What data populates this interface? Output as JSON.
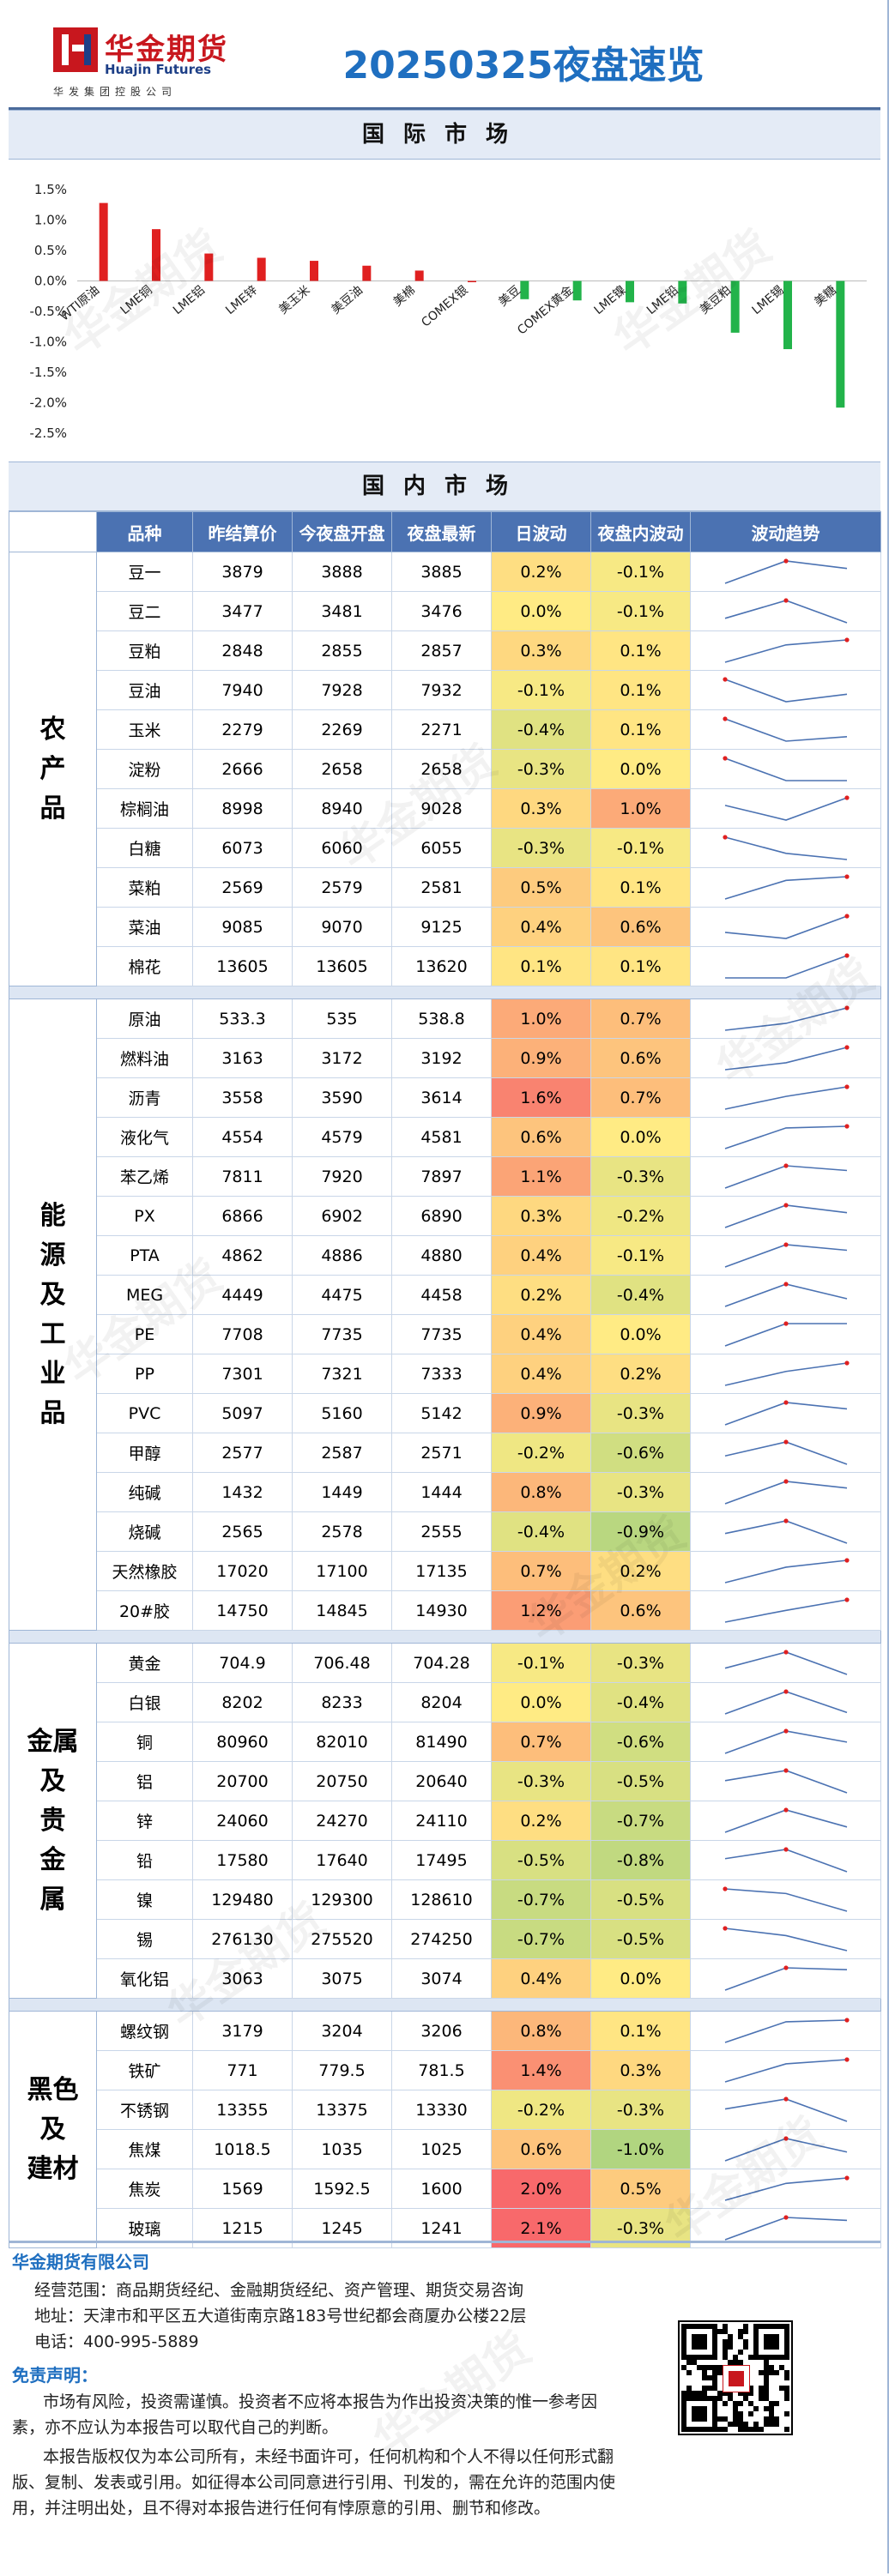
{
  "header": {
    "logo_cn": "华金期货",
    "logo_en": "Huajin Futures",
    "logo_sub": "华发集团控股公司",
    "title": "20250325夜盘速览",
    "watermark": "华金期货"
  },
  "sections": {
    "international": "国际市场",
    "domestic": "国内市场"
  },
  "chart_data": {
    "type": "bar",
    "categories": [
      "WTI原油",
      "LME铜",
      "LME铝",
      "LME锌",
      "美玉米",
      "美豆油",
      "美棉",
      "COMEX银",
      "美豆",
      "COMEX黄金",
      "LME镍",
      "LME铅",
      "美豆粕",
      "LME锡",
      "美糖"
    ],
    "values": [
      1.28,
      0.85,
      0.45,
      0.38,
      0.33,
      0.25,
      0.17,
      0.0,
      -0.3,
      -0.32,
      -0.35,
      -0.37,
      -0.85,
      -1.12,
      -2.08
    ],
    "ylim": [
      -2.5,
      1.5
    ],
    "yticks": [
      "1.5%",
      "1.0%",
      "0.5%",
      "0.0%",
      "-0.5%",
      "-1.0%",
      "-1.5%",
      "-2.0%",
      "-2.5%"
    ],
    "colors": {
      "up": "#e02020",
      "down": "#22b34a"
    },
    "grid": false
  },
  "table": {
    "headers": [
      "品种",
      "昨结算价",
      "今夜盘开盘",
      "夜盘最新",
      "日波动",
      "夜盘内波动",
      "波动趋势"
    ],
    "groups": [
      {
        "name": "农产品",
        "rows": [
          {
            "name": "豆一",
            "prev": "3879",
            "open": "3888",
            "last": "3885",
            "day": "0.2%",
            "night": "-0.1%",
            "trend": [
              3879,
              3888,
              3885
            ],
            "day_v": 0.2,
            "night_v": -0.1
          },
          {
            "name": "豆二",
            "prev": "3477",
            "open": "3481",
            "last": "3476",
            "day": "0.0%",
            "night": "-0.1%",
            "trend": [
              3477,
              3481,
              3476
            ],
            "day_v": 0.0,
            "night_v": -0.1
          },
          {
            "name": "豆粕",
            "prev": "2848",
            "open": "2855",
            "last": "2857",
            "day": "0.3%",
            "night": "0.1%",
            "trend": [
              2848,
              2855,
              2857
            ],
            "day_v": 0.3,
            "night_v": 0.1
          },
          {
            "name": "豆油",
            "prev": "7940",
            "open": "7928",
            "last": "7932",
            "day": "-0.1%",
            "night": "0.1%",
            "trend": [
              7940,
              7928,
              7932
            ],
            "day_v": -0.1,
            "night_v": 0.1
          },
          {
            "name": "玉米",
            "prev": "2279",
            "open": "2269",
            "last": "2271",
            "day": "-0.4%",
            "night": "0.1%",
            "trend": [
              2279,
              2269,
              2271
            ],
            "day_v": -0.4,
            "night_v": 0.1
          },
          {
            "name": "淀粉",
            "prev": "2666",
            "open": "2658",
            "last": "2658",
            "day": "-0.3%",
            "night": "0.0%",
            "trend": [
              2666,
              2658,
              2658
            ],
            "day_v": -0.3,
            "night_v": 0.0
          },
          {
            "name": "棕榈油",
            "prev": "8998",
            "open": "8940",
            "last": "9028",
            "day": "0.3%",
            "night": "1.0%",
            "trend": [
              8998,
              8940,
              9028
            ],
            "day_v": 0.3,
            "night_v": 1.0
          },
          {
            "name": "白糖",
            "prev": "6073",
            "open": "6060",
            "last": "6055",
            "day": "-0.3%",
            "night": "-0.1%",
            "trend": [
              6073,
              6060,
              6055
            ],
            "day_v": -0.3,
            "night_v": -0.1
          },
          {
            "name": "菜粕",
            "prev": "2569",
            "open": "2579",
            "last": "2581",
            "day": "0.5%",
            "night": "0.1%",
            "trend": [
              2569,
              2579,
              2581
            ],
            "day_v": 0.5,
            "night_v": 0.1
          },
          {
            "name": "菜油",
            "prev": "9085",
            "open": "9070",
            "last": "9125",
            "day": "0.4%",
            "night": "0.6%",
            "trend": [
              9085,
              9070,
              9125
            ],
            "day_v": 0.4,
            "night_v": 0.6
          },
          {
            "name": "棉花",
            "prev": "13605",
            "open": "13605",
            "last": "13620",
            "day": "0.1%",
            "night": "0.1%",
            "trend": [
              13605,
              13605,
              13620
            ],
            "day_v": 0.1,
            "night_v": 0.1
          }
        ]
      },
      {
        "name": "能源及工业品",
        "rows": [
          {
            "name": "原油",
            "prev": "533.3",
            "open": "535",
            "last": "538.8",
            "day": "1.0%",
            "night": "0.7%",
            "trend": [
              533.3,
              535,
              538.8
            ],
            "day_v": 1.0,
            "night_v": 0.7
          },
          {
            "name": "燃料油",
            "prev": "3163",
            "open": "3172",
            "last": "3192",
            "day": "0.9%",
            "night": "0.6%",
            "trend": [
              3163,
              3172,
              3192
            ],
            "day_v": 0.9,
            "night_v": 0.6
          },
          {
            "name": "沥青",
            "prev": "3558",
            "open": "3590",
            "last": "3614",
            "day": "1.6%",
            "night": "0.7%",
            "trend": [
              3558,
              3590,
              3614
            ],
            "day_v": 1.6,
            "night_v": 0.7
          },
          {
            "name": "液化气",
            "prev": "4554",
            "open": "4579",
            "last": "4581",
            "day": "0.6%",
            "night": "0.0%",
            "trend": [
              4554,
              4579,
              4581
            ],
            "day_v": 0.6,
            "night_v": 0.0
          },
          {
            "name": "苯乙烯",
            "prev": "7811",
            "open": "7920",
            "last": "7897",
            "day": "1.1%",
            "night": "-0.3%",
            "trend": [
              7811,
              7920,
              7897
            ],
            "day_v": 1.1,
            "night_v": -0.3
          },
          {
            "name": "PX",
            "prev": "6866",
            "open": "6902",
            "last": "6890",
            "day": "0.3%",
            "night": "-0.2%",
            "trend": [
              6866,
              6902,
              6890
            ],
            "day_v": 0.3,
            "night_v": -0.2
          },
          {
            "name": "PTA",
            "prev": "4862",
            "open": "4886",
            "last": "4880",
            "day": "0.4%",
            "night": "-0.1%",
            "trend": [
              4862,
              4886,
              4880
            ],
            "day_v": 0.4,
            "night_v": -0.1
          },
          {
            "name": "MEG",
            "prev": "4449",
            "open": "4475",
            "last": "4458",
            "day": "0.2%",
            "night": "-0.4%",
            "trend": [
              4449,
              4475,
              4458
            ],
            "day_v": 0.2,
            "night_v": -0.4
          },
          {
            "name": "PE",
            "prev": "7708",
            "open": "7735",
            "last": "7735",
            "day": "0.4%",
            "night": "0.0%",
            "trend": [
              7708,
              7735,
              7735
            ],
            "day_v": 0.4,
            "night_v": 0.0
          },
          {
            "name": "PP",
            "prev": "7301",
            "open": "7321",
            "last": "7333",
            "day": "0.4%",
            "night": "0.2%",
            "trend": [
              7301,
              7321,
              7333
            ],
            "day_v": 0.4,
            "night_v": 0.2
          },
          {
            "name": "PVC",
            "prev": "5097",
            "open": "5160",
            "last": "5142",
            "day": "0.9%",
            "night": "-0.3%",
            "trend": [
              5097,
              5160,
              5142
            ],
            "day_v": 0.9,
            "night_v": -0.3
          },
          {
            "name": "甲醇",
            "prev": "2577",
            "open": "2587",
            "last": "2571",
            "day": "-0.2%",
            "night": "-0.6%",
            "trend": [
              2577,
              2587,
              2571
            ],
            "day_v": -0.2,
            "night_v": -0.6
          },
          {
            "name": "纯碱",
            "prev": "1432",
            "open": "1449",
            "last": "1444",
            "day": "0.8%",
            "night": "-0.3%",
            "trend": [
              1432,
              1449,
              1444
            ],
            "day_v": 0.8,
            "night_v": -0.3
          },
          {
            "name": "烧碱",
            "prev": "2565",
            "open": "2578",
            "last": "2555",
            "day": "-0.4%",
            "night": "-0.9%",
            "trend": [
              2565,
              2578,
              2555
            ],
            "day_v": -0.4,
            "night_v": -0.9
          },
          {
            "name": "天然橡胶",
            "prev": "17020",
            "open": "17100",
            "last": "17135",
            "day": "0.7%",
            "night": "0.2%",
            "trend": [
              17020,
              17100,
              17135
            ],
            "day_v": 0.7,
            "night_v": 0.2
          },
          {
            "name": "20#胶",
            "prev": "14750",
            "open": "14845",
            "last": "14930",
            "day": "1.2%",
            "night": "0.6%",
            "trend": [
              14750,
              14845,
              14930
            ],
            "day_v": 1.2,
            "night_v": 0.6
          }
        ]
      },
      {
        "name": "金属及贵金属",
        "rows": [
          {
            "name": "黄金",
            "prev": "704.9",
            "open": "706.48",
            "last": "704.28",
            "day": "-0.1%",
            "night": "-0.3%",
            "trend": [
              704.9,
              706.48,
              704.28
            ],
            "day_v": -0.1,
            "night_v": -0.3
          },
          {
            "name": "白银",
            "prev": "8202",
            "open": "8233",
            "last": "8204",
            "day": "0.0%",
            "night": "-0.4%",
            "trend": [
              8202,
              8233,
              8204
            ],
            "day_v": 0.0,
            "night_v": -0.4
          },
          {
            "name": "铜",
            "prev": "80960",
            "open": "82010",
            "last": "81490",
            "day": "0.7%",
            "night": "-0.6%",
            "trend": [
              80960,
              82010,
              81490
            ],
            "day_v": 0.7,
            "night_v": -0.6
          },
          {
            "name": "铝",
            "prev": "20700",
            "open": "20750",
            "last": "20640",
            "day": "-0.3%",
            "night": "-0.5%",
            "trend": [
              20700,
              20750,
              20640
            ],
            "day_v": -0.3,
            "night_v": -0.5
          },
          {
            "name": "锌",
            "prev": "24060",
            "open": "24270",
            "last": "24110",
            "day": "0.2%",
            "night": "-0.7%",
            "trend": [
              24060,
              24270,
              24110
            ],
            "day_v": 0.2,
            "night_v": -0.7
          },
          {
            "name": "铅",
            "prev": "17580",
            "open": "17640",
            "last": "17495",
            "day": "-0.5%",
            "night": "-0.8%",
            "trend": [
              17580,
              17640,
              17495
            ],
            "day_v": -0.5,
            "night_v": -0.8
          },
          {
            "name": "镍",
            "prev": "129480",
            "open": "129300",
            "last": "128610",
            "day": "-0.7%",
            "night": "-0.5%",
            "trend": [
              129480,
              129300,
              128610
            ],
            "day_v": -0.7,
            "night_v": -0.5
          },
          {
            "name": "锡",
            "prev": "276130",
            "open": "275520",
            "last": "274250",
            "day": "-0.7%",
            "night": "-0.5%",
            "trend": [
              276130,
              275520,
              274250
            ],
            "day_v": -0.7,
            "night_v": -0.5
          },
          {
            "name": "氧化铝",
            "prev": "3063",
            "open": "3075",
            "last": "3074",
            "day": "0.4%",
            "night": "0.0%",
            "trend": [
              3063,
              3075,
              3074
            ],
            "day_v": 0.4,
            "night_v": 0.0
          }
        ]
      },
      {
        "name": "黑色及建材",
        "rows": [
          {
            "name": "螺纹钢",
            "prev": "3179",
            "open": "3204",
            "last": "3206",
            "day": "0.8%",
            "night": "0.1%",
            "trend": [
              3179,
              3204,
              3206
            ],
            "day_v": 0.8,
            "night_v": 0.1
          },
          {
            "name": "铁矿",
            "prev": "771",
            "open": "779.5",
            "last": "781.5",
            "day": "1.4%",
            "night": "0.3%",
            "trend": [
              771,
              779.5,
              781.5
            ],
            "day_v": 1.4,
            "night_v": 0.3
          },
          {
            "name": "不锈钢",
            "prev": "13355",
            "open": "13375",
            "last": "13330",
            "day": "-0.2%",
            "night": "-0.3%",
            "trend": [
              13355,
              13375,
              13330
            ],
            "day_v": -0.2,
            "night_v": -0.3
          },
          {
            "name": "焦煤",
            "prev": "1018.5",
            "open": "1035",
            "last": "1025",
            "day": "0.6%",
            "night": "-1.0%",
            "trend": [
              1018.5,
              1035,
              1025
            ],
            "day_v": 0.6,
            "night_v": -1.0
          },
          {
            "name": "焦炭",
            "prev": "1569",
            "open": "1592.5",
            "last": "1600",
            "day": "2.0%",
            "night": "0.5%",
            "trend": [
              1569,
              1592.5,
              1600
            ],
            "day_v": 2.0,
            "night_v": 0.5
          },
          {
            "name": "玻璃",
            "prev": "1215",
            "open": "1245",
            "last": "1241",
            "day": "2.1%",
            "night": "-0.3%",
            "trend": [
              1215,
              1245,
              1241
            ],
            "day_v": 2.1,
            "night_v": -0.3
          }
        ]
      }
    ]
  },
  "footer": {
    "company": "华金期货有限公司",
    "scope": "经营范围：商品期货经纪、金融期货经纪、资产管理、期货交易咨询",
    "address": "地址：天津市和平区五大道街南京路183号世纪都会商厦办公楼22层",
    "phone": "电话：400-995-5889",
    "disclaimer_title": "免责声明：",
    "disclaimer_1": "市场有风险，投资需谨慎。投资者不应将本报告为作出投资决策的惟一参考因素，亦不应认为本报告可以取代自己的判断。",
    "disclaimer_2": "本报告版权仅为本公司所有，未经书面许可，任何机构和个人不得以任何形式翻版、复制、发表或引用。如征得本公司同意进行引用、刊发的，需在允许的范围内使用，并注明出处，且不得对本报告进行任何有悖原意的引用、删节和修改。"
  }
}
